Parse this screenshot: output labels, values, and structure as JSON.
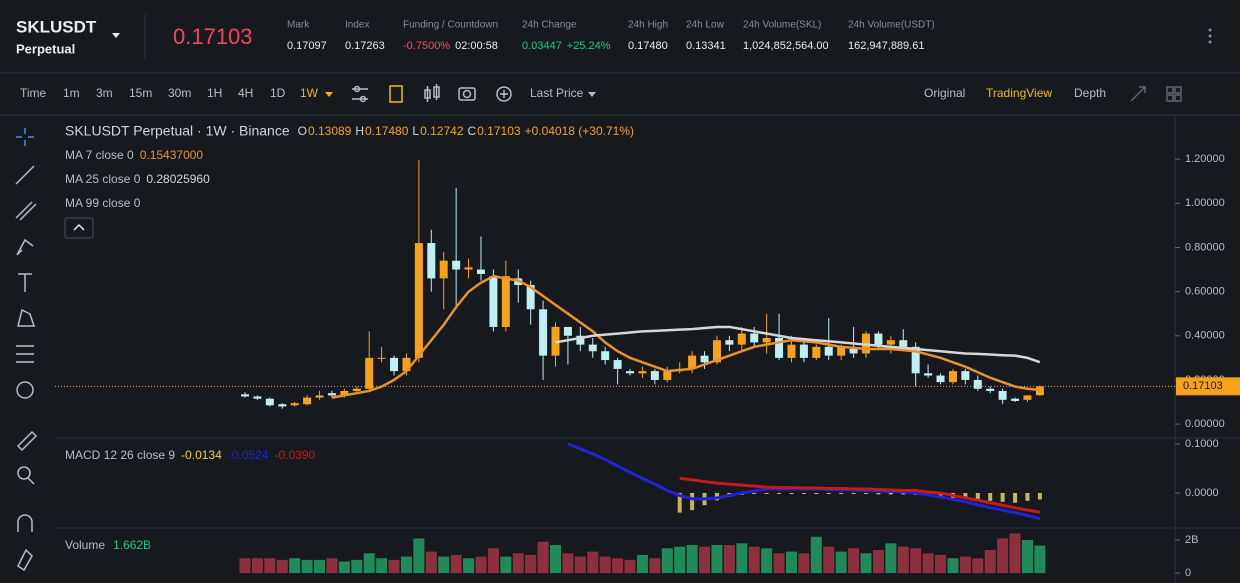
{
  "header": {
    "symbol": "SKLUSDT",
    "contract": "Perpetual",
    "price": "0.17103",
    "stats": [
      {
        "label": "Mark",
        "values": [
          {
            "text": "0.17097",
            "color": "#eaecef"
          }
        ]
      },
      {
        "label": "Index",
        "values": [
          {
            "text": "0.17263",
            "color": "#eaecef"
          }
        ]
      },
      {
        "label": "Funding / Countdown",
        "values": [
          {
            "text": "-0.7500%",
            "color": "#f6465d"
          },
          {
            "text": "02:00:58",
            "color": "#eaecef"
          }
        ]
      },
      {
        "label": "24h Change",
        "values": [
          {
            "text": "0.03447",
            "color": "#0ecb81"
          },
          {
            "text": "+25.24%",
            "color": "#0ecb81"
          }
        ]
      },
      {
        "label": "24h High",
        "values": [
          {
            "text": "0.17480",
            "color": "#eaecef"
          }
        ]
      },
      {
        "label": "24h Low",
        "values": [
          {
            "text": "0.13341",
            "color": "#eaecef"
          }
        ]
      },
      {
        "label": "24h Volume(SKL)",
        "values": [
          {
            "text": "1,024,852,564.00",
            "color": "#eaecef"
          }
        ]
      },
      {
        "label": "24h Volume(USDT)",
        "values": [
          {
            "text": "162,947,889.61",
            "color": "#eaecef"
          }
        ]
      }
    ]
  },
  "toolbar": {
    "intervals": [
      "Time",
      "1m",
      "3m",
      "15m",
      "30m",
      "1H",
      "4H",
      "1D",
      "1W"
    ],
    "active_interval": 8,
    "price_type": "Last Price",
    "views": [
      "Original",
      "TradingView",
      "Depth"
    ],
    "active_view": 1
  },
  "chart_data": [
    {
      "type": "candlestick",
      "title": "SKLUSDT Perpetual · 1W · Binance",
      "ohlc_legend": [
        {
          "label": "O",
          "value": "0.13089"
        },
        {
          "label": "H",
          "value": "0.17480"
        },
        {
          "label": "L",
          "value": "0.12742"
        },
        {
          "label": "C",
          "value": "0.17103"
        }
      ],
      "change": "+0.04018 (+30.71%)",
      "up_color": "#f7a21b",
      "down_color": "#bfeff2",
      "open": [
        0.135,
        0.125,
        0.115,
        0.09,
        0.085,
        0.09,
        0.12,
        0.14,
        0.13,
        0.15,
        0.16,
        0.3,
        0.3,
        0.24,
        0.3,
        0.82,
        0.66,
        0.74,
        0.7,
        0.7,
        0.67,
        0.44,
        0.66,
        0.63,
        0.52,
        0.31,
        0.44,
        0.4,
        0.36,
        0.33,
        0.29,
        0.24,
        0.23,
        0.24,
        0.2,
        0.24,
        0.25,
        0.31,
        0.28,
        0.38,
        0.36,
        0.41,
        0.37,
        0.39,
        0.3,
        0.36,
        0.3,
        0.35,
        0.31,
        0.34,
        0.32,
        0.41,
        0.36,
        0.38,
        0.35,
        0.23,
        0.22,
        0.19,
        0.24,
        0.2,
        0.16,
        0.15,
        0.115,
        0.11,
        0.13089
      ],
      "high": [
        0.145,
        0.13,
        0.12,
        0.095,
        0.1,
        0.13,
        0.15,
        0.15,
        0.16,
        0.17,
        0.42,
        0.35,
        0.31,
        0.32,
        1.195,
        0.88,
        0.78,
        1.07,
        0.75,
        0.85,
        0.7,
        0.74,
        0.7,
        0.65,
        0.56,
        0.46,
        0.44,
        0.44,
        0.39,
        0.35,
        0.3,
        0.25,
        0.26,
        0.25,
        0.26,
        0.28,
        0.33,
        0.33,
        0.4,
        0.4,
        0.44,
        0.44,
        0.5,
        0.5,
        0.4,
        0.38,
        0.36,
        0.48,
        0.36,
        0.44,
        0.42,
        0.42,
        0.4,
        0.43,
        0.37,
        0.27,
        0.23,
        0.25,
        0.25,
        0.22,
        0.17,
        0.16,
        0.12,
        0.13,
        0.1748
      ],
      "low": [
        0.12,
        0.11,
        0.08,
        0.07,
        0.08,
        0.085,
        0.11,
        0.12,
        0.12,
        0.14,
        0.15,
        0.28,
        0.22,
        0.22,
        0.28,
        0.6,
        0.52,
        0.52,
        0.66,
        0.65,
        0.42,
        0.42,
        0.55,
        0.45,
        0.2,
        0.26,
        0.27,
        0.33,
        0.3,
        0.27,
        0.18,
        0.22,
        0.21,
        0.18,
        0.19,
        0.23,
        0.23,
        0.25,
        0.27,
        0.33,
        0.33,
        0.35,
        0.32,
        0.29,
        0.28,
        0.28,
        0.29,
        0.29,
        0.29,
        0.3,
        0.3,
        0.34,
        0.32,
        0.33,
        0.17,
        0.21,
        0.18,
        0.18,
        0.18,
        0.15,
        0.14,
        0.09,
        0.1,
        0.1,
        0.12742
      ],
      "close": [
        0.125,
        0.115,
        0.085,
        0.08,
        0.095,
        0.12,
        0.13,
        0.13,
        0.15,
        0.16,
        0.3,
        0.3,
        0.24,
        0.3,
        0.82,
        0.66,
        0.74,
        0.7,
        0.71,
        0.68,
        0.44,
        0.67,
        0.63,
        0.52,
        0.31,
        0.44,
        0.4,
        0.36,
        0.33,
        0.29,
        0.25,
        0.23,
        0.24,
        0.2,
        0.24,
        0.25,
        0.31,
        0.28,
        0.38,
        0.36,
        0.41,
        0.37,
        0.39,
        0.3,
        0.36,
        0.3,
        0.35,
        0.31,
        0.35,
        0.32,
        0.41,
        0.36,
        0.38,
        0.35,
        0.23,
        0.22,
        0.19,
        0.24,
        0.2,
        0.16,
        0.15,
        0.11,
        0.105,
        0.13,
        0.17103
      ],
      "overlays": [
        {
          "name": "MA 7 close 0",
          "color": "#e8912f",
          "value_label": "0.15437000",
          "values": [
            null,
            null,
            null,
            null,
            null,
            null,
            null,
            0.12,
            0.13,
            0.14,
            0.15,
            0.17,
            0.2,
            0.24,
            0.31,
            0.38,
            0.45,
            0.53,
            0.6,
            0.64,
            0.67,
            0.66,
            0.65,
            0.62,
            0.58,
            0.54,
            0.5,
            0.46,
            0.42,
            0.37,
            0.33,
            0.3,
            0.28,
            0.26,
            0.24,
            0.245,
            0.25,
            0.27,
            0.29,
            0.31,
            0.33,
            0.35,
            0.36,
            0.37,
            0.38,
            0.375,
            0.37,
            0.36,
            0.35,
            0.345,
            0.34,
            0.34,
            0.34,
            0.335,
            0.33,
            0.315,
            0.3,
            0.28,
            0.26,
            0.235,
            0.21,
            0.19,
            0.17,
            0.16,
            0.15437
          ]
        },
        {
          "name": "MA 25 close 0",
          "color": "#d6d6d6",
          "value_label": "0.28025960",
          "values": [
            null,
            null,
            null,
            null,
            null,
            null,
            null,
            null,
            null,
            null,
            null,
            null,
            null,
            null,
            null,
            null,
            null,
            null,
            null,
            null,
            null,
            null,
            null,
            null,
            null,
            0.37,
            0.38,
            0.39,
            0.4,
            0.405,
            0.41,
            0.415,
            0.42,
            0.422,
            0.425,
            0.428,
            0.43,
            0.435,
            0.44,
            0.44,
            0.43,
            0.42,
            0.41,
            0.4,
            0.39,
            0.385,
            0.38,
            0.375,
            0.37,
            0.365,
            0.36,
            0.355,
            0.35,
            0.345,
            0.34,
            0.335,
            0.33,
            0.325,
            0.32,
            0.318,
            0.315,
            0.312,
            0.31,
            0.3,
            0.28026
          ]
        },
        {
          "name": "MA 99 close 0"
        }
      ],
      "ylim": [
        -0.063,
        1.4
      ],
      "yticks": [
        {
          "value": 0,
          "label": "0.00000"
        },
        {
          "value": 0.2,
          "label": "0.20000"
        },
        {
          "value": 0.4,
          "label": "0.40000"
        },
        {
          "value": 0.6,
          "label": "0.60000"
        },
        {
          "value": 0.8,
          "label": "0.80000"
        },
        {
          "value": 1,
          "label": "1.00000"
        },
        {
          "value": 1.2,
          "label": "1.20000"
        }
      ]
    },
    {
      "type": "macd",
      "title": "MACD 12 26 close 9",
      "series": [
        {
          "kind": "histogram",
          "color": "#c7b55a",
          "value_label": "-0.0134",
          "values": [
            null,
            null,
            null,
            null,
            null,
            null,
            null,
            null,
            null,
            null,
            null,
            null,
            null,
            null,
            null,
            null,
            null,
            null,
            null,
            null,
            null,
            null,
            null,
            null,
            null,
            null,
            null,
            null,
            null,
            null,
            null,
            null,
            null,
            null,
            null,
            -0.04,
            -0.035,
            -0.025,
            -0.015,
            -0.008,
            -0.004,
            -0.002,
            -0.002,
            -0.001,
            -0.001,
            -0.001,
            -0.002,
            -0.002,
            -0.002,
            -0.002,
            -0.002,
            -0.003,
            -0.003,
            -0.003,
            -0.004,
            -0.006,
            -0.008,
            -0.01,
            -0.012,
            -0.014,
            -0.016,
            -0.018,
            -0.02,
            -0.016,
            -0.0134
          ]
        },
        {
          "kind": "line",
          "color": "#2222d8",
          "value_label": "-0.0524",
          "values": [
            null,
            null,
            null,
            null,
            null,
            null,
            null,
            null,
            null,
            null,
            null,
            null,
            null,
            null,
            null,
            null,
            null,
            null,
            null,
            null,
            null,
            null,
            null,
            null,
            null,
            null,
            0.1,
            0.09,
            0.08,
            0.068,
            0.055,
            0.042,
            0.03,
            0.018,
            0.005,
            -0.005,
            -0.012,
            -0.012,
            -0.01,
            -0.005,
            0.0,
            0.004,
            0.008,
            0.008,
            0.008,
            0.008,
            0.008,
            0.007,
            0.006,
            0.006,
            0.005,
            0.004,
            0.003,
            0.002,
            0.0,
            -0.004,
            -0.008,
            -0.013,
            -0.018,
            -0.024,
            -0.03,
            -0.035,
            -0.04,
            -0.046,
            -0.0524
          ]
        },
        {
          "kind": "line",
          "color": "#c41a1a",
          "value_label": "-0.0390",
          "values": [
            null,
            null,
            null,
            null,
            null,
            null,
            null,
            null,
            null,
            null,
            null,
            null,
            null,
            null,
            null,
            null,
            null,
            null,
            null,
            null,
            null,
            null,
            null,
            null,
            null,
            null,
            null,
            null,
            null,
            null,
            null,
            null,
            null,
            null,
            null,
            0.03,
            0.027,
            0.023,
            0.02,
            0.018,
            0.016,
            0.014,
            0.012,
            0.011,
            0.011,
            0.01,
            0.01,
            0.009,
            0.009,
            0.008,
            0.008,
            0.007,
            0.006,
            0.005,
            0.005,
            0.002,
            0.0,
            -0.005,
            -0.01,
            -0.015,
            -0.02,
            -0.025,
            -0.03,
            -0.035,
            -0.039
          ]
        }
      ],
      "ylim": [
        -0.0714,
        0.112
      ],
      "yticks": [
        {
          "value": 0,
          "label": "0.0000"
        },
        {
          "value": 0.1,
          "label": "0.1000"
        }
      ]
    },
    {
      "type": "volume",
      "title": "Volume",
      "value_label": "1.662B",
      "up_color": "#1f8a5c",
      "down_color": "#8e2f40",
      "values": [
        0.9,
        0.9,
        0.9,
        0.8,
        0.9,
        0.8,
        0.8,
        0.9,
        0.7,
        0.8,
        1.2,
        0.9,
        0.8,
        1.0,
        2.1,
        1.3,
        1.0,
        1.1,
        0.9,
        1.0,
        1.5,
        1.0,
        1.2,
        1.1,
        1.9,
        1.7,
        1.2,
        1.0,
        1.3,
        1.0,
        0.9,
        0.8,
        1.1,
        0.9,
        1.5,
        1.6,
        1.7,
        1.6,
        1.7,
        1.7,
        1.8,
        1.6,
        1.5,
        1.2,
        1.3,
        1.2,
        2.2,
        1.6,
        1.3,
        1.5,
        1.2,
        1.4,
        1.8,
        1.6,
        1.5,
        1.2,
        1.1,
        0.9,
        1.0,
        0.9,
        1.4,
        2.1,
        2.4,
        2.0,
        1.662
      ],
      "ylim": [
        -0.6,
        2.73
      ],
      "yticks": [
        {
          "value": 0,
          "label": "0"
        },
        {
          "value": 2,
          "label": "2B"
        }
      ]
    }
  ]
}
